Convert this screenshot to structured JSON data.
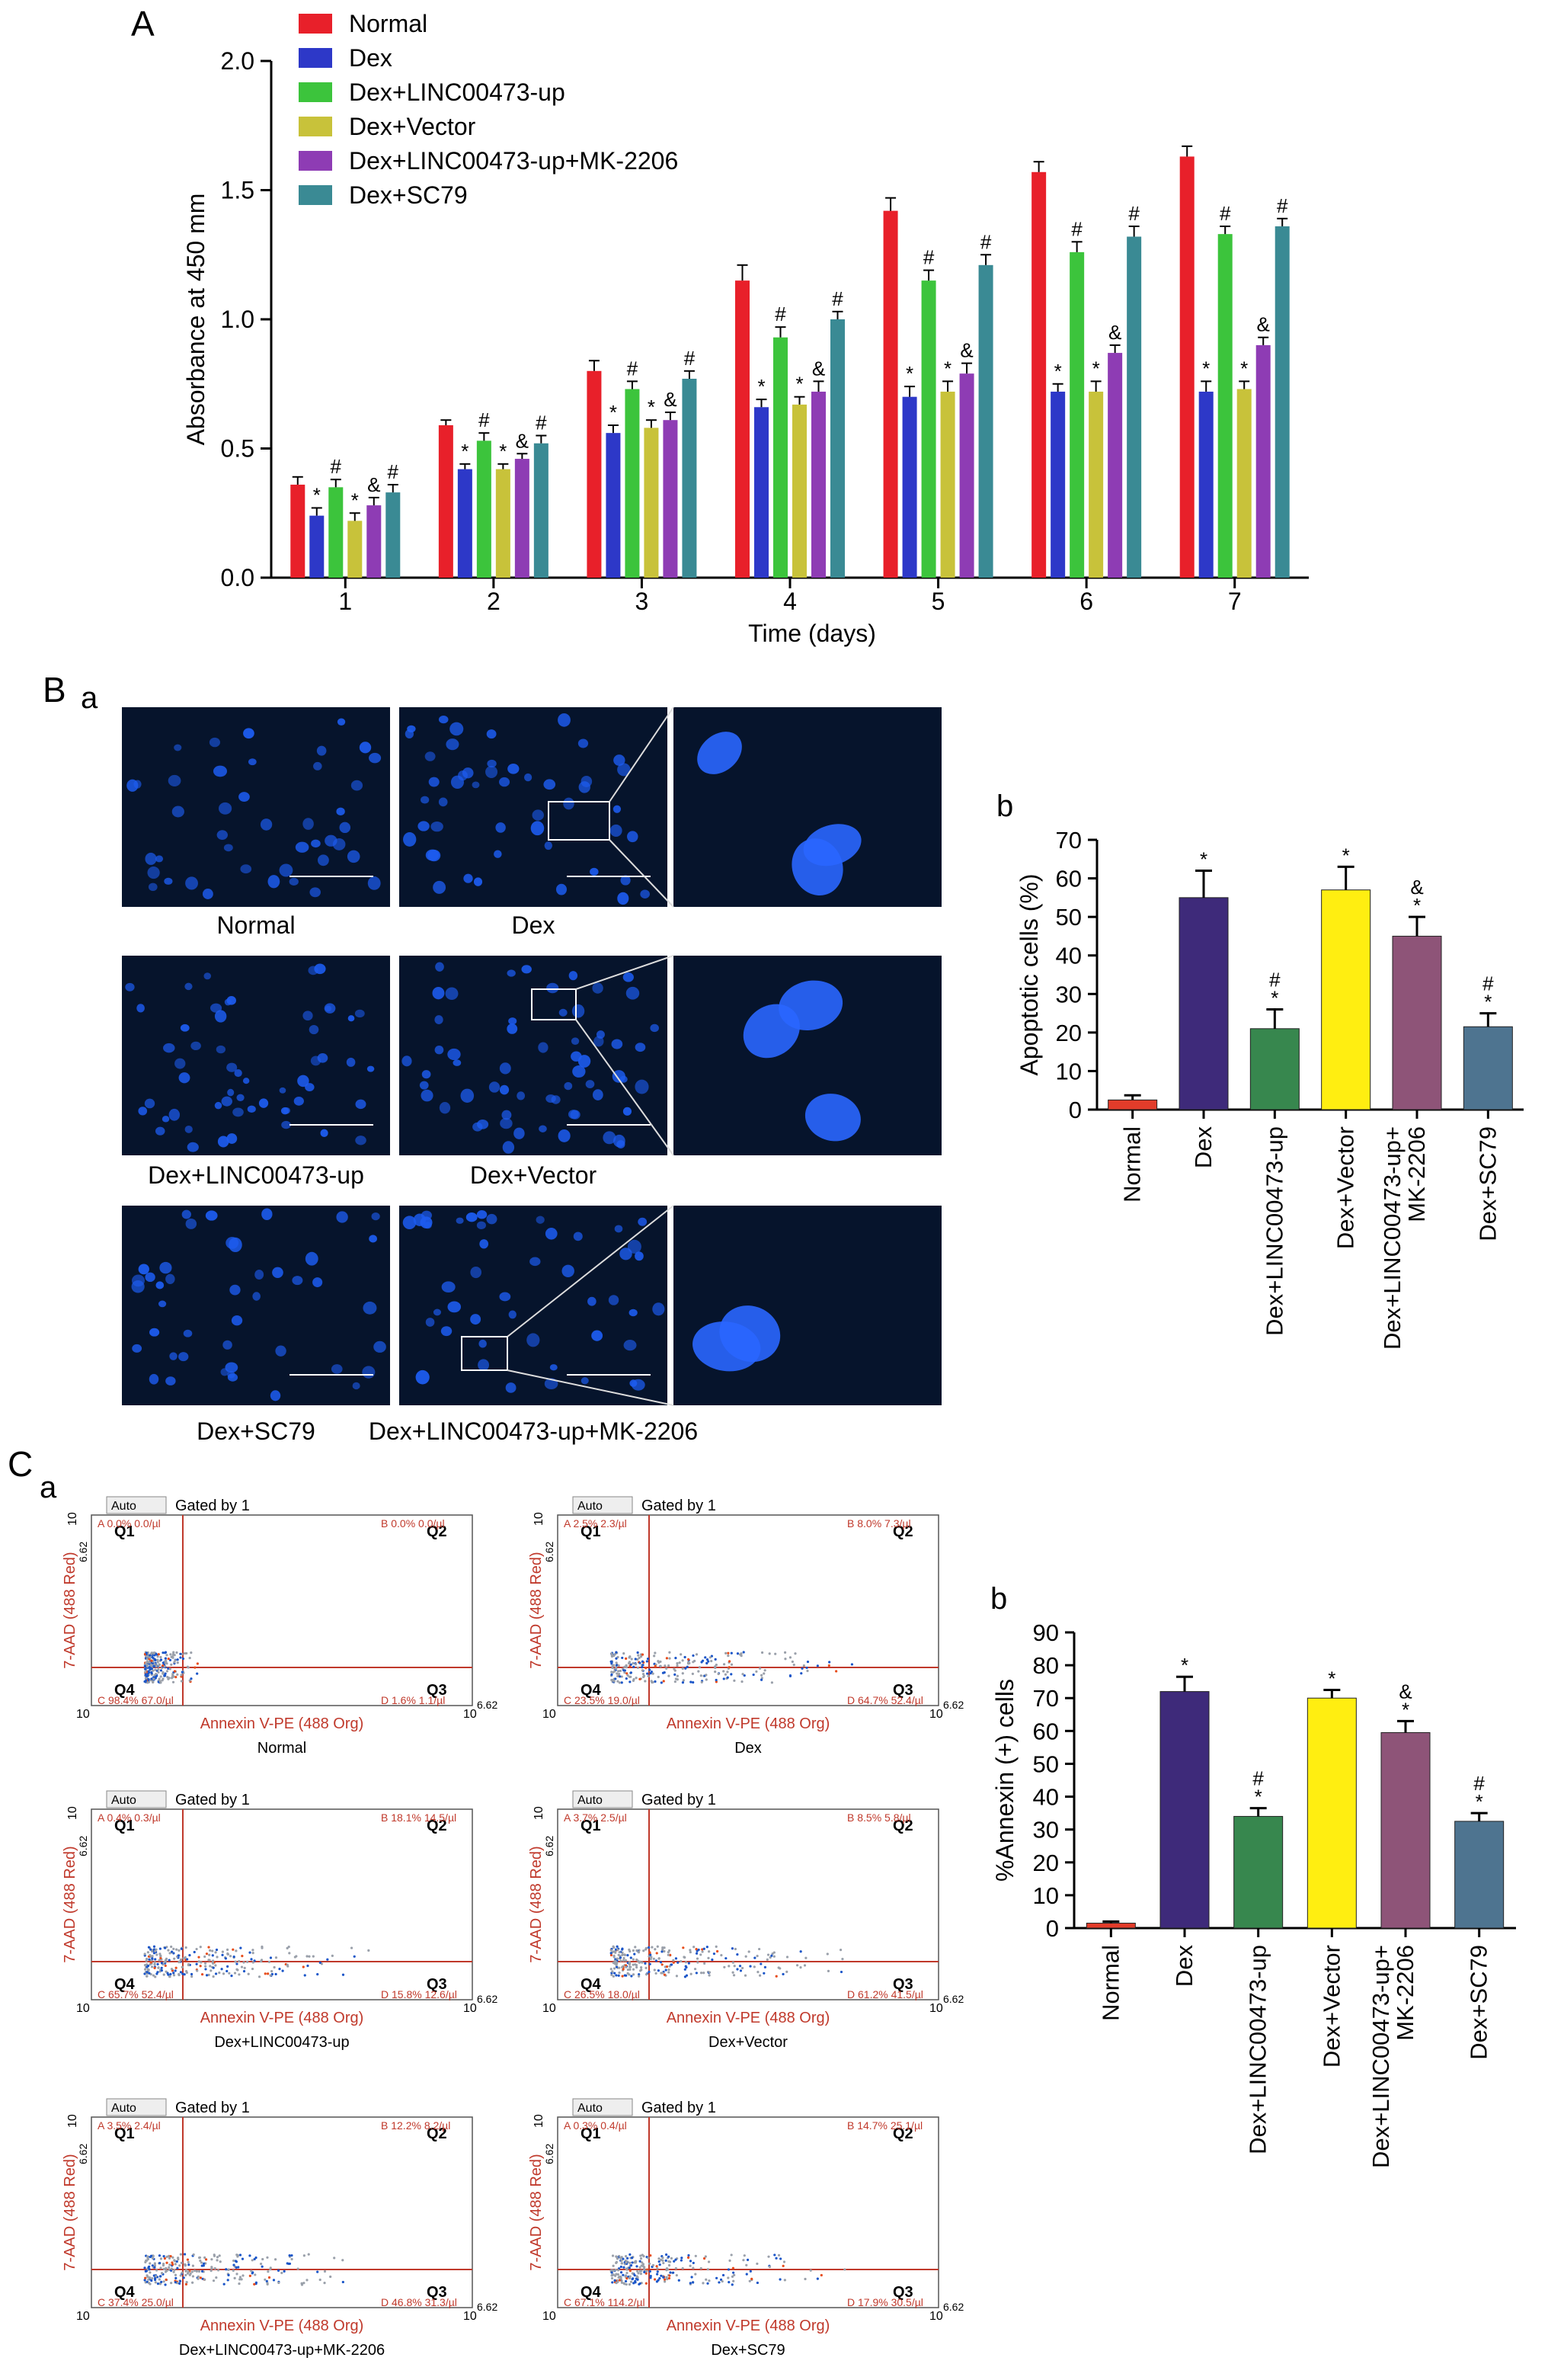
{
  "panels": {
    "A": "A",
    "B": "B",
    "Ba": "a",
    "Bb": "b",
    "C": "C",
    "Ca": "a",
    "Cb": "b"
  },
  "colors": {
    "Normal": "#e8202a",
    "Dex": "#2d38c8",
    "Dex+LINC00473-up": "#3cc43c",
    "Dex+Vector": "#c8c23a",
    "Dex+LINC00473-up+MK-2206": "#8e3cb4",
    "Dex+SC79": "#3a8a94",
    "bar_Normal": "#e23c2a",
    "bar_Dex": "#3e2a7a",
    "bar_LINC": "#37874e",
    "bar_Vector": "#ffee11",
    "bar_MK": "#8e5478",
    "bar_SC79": "#4e7490"
  },
  "chart_data": [
    {
      "type": "bar",
      "xlabel": "Time (days)",
      "ylabel": "Absorbance at 450 mm",
      "ylim": [
        0,
        2.0
      ],
      "yticks": [
        "0.0",
        "0.5",
        "1.0",
        "1.5",
        "2.0"
      ],
      "categories": [
        "1",
        "2",
        "3",
        "4",
        "5",
        "6",
        "7"
      ],
      "legend_position": "top-left",
      "series": [
        {
          "name": "Normal",
          "values": [
            0.36,
            0.59,
            0.8,
            1.15,
            1.42,
            1.57,
            1.63
          ],
          "err": [
            0.03,
            0.02,
            0.04,
            0.06,
            0.05,
            0.04,
            0.04
          ],
          "marks": [
            "",
            "",
            "",
            "",
            "",
            "",
            ""
          ]
        },
        {
          "name": "Dex",
          "values": [
            0.24,
            0.42,
            0.56,
            0.66,
            0.7,
            0.72,
            0.72
          ],
          "err": [
            0.03,
            0.02,
            0.03,
            0.03,
            0.04,
            0.03,
            0.04
          ],
          "marks": [
            "*",
            "*",
            "*",
            "*",
            "*",
            "*",
            "*"
          ]
        },
        {
          "name": "Dex+LINC00473-up",
          "values": [
            0.35,
            0.53,
            0.73,
            0.93,
            1.15,
            1.26,
            1.33
          ],
          "err": [
            0.03,
            0.03,
            0.03,
            0.04,
            0.04,
            0.04,
            0.03
          ],
          "marks": [
            "#",
            "#",
            "#",
            "#",
            "#",
            "#",
            "#"
          ]
        },
        {
          "name": "Dex+Vector",
          "values": [
            0.22,
            0.42,
            0.58,
            0.67,
            0.72,
            0.72,
            0.73
          ],
          "err": [
            0.03,
            0.02,
            0.03,
            0.03,
            0.04,
            0.04,
            0.03
          ],
          "marks": [
            "*",
            "*",
            "*",
            "*",
            "*",
            "*",
            "*"
          ]
        },
        {
          "name": "Dex+LINC00473-up+MK-2206",
          "values": [
            0.28,
            0.46,
            0.61,
            0.72,
            0.79,
            0.87,
            0.9
          ],
          "err": [
            0.03,
            0.02,
            0.03,
            0.04,
            0.04,
            0.03,
            0.03
          ],
          "marks": [
            "&",
            "&",
            "&",
            "&",
            "&",
            "&",
            "&"
          ]
        },
        {
          "name": "Dex+SC79",
          "values": [
            0.33,
            0.52,
            0.77,
            1.0,
            1.21,
            1.32,
            1.36
          ],
          "err": [
            0.03,
            0.03,
            0.03,
            0.03,
            0.04,
            0.04,
            0.03
          ],
          "marks": [
            "#",
            "#",
            "#",
            "#",
            "#",
            "#",
            "#"
          ]
        }
      ]
    },
    {
      "type": "bar",
      "ylabel": "Apoptotic cells (%)",
      "ylim": [
        0,
        70
      ],
      "yticks": [
        "0",
        "10",
        "20",
        "30",
        "40",
        "50",
        "60",
        "70"
      ],
      "categories": [
        "Normal",
        "Dex",
        "Dex+LINC00473-up",
        "Dex+Vector",
        "Dex+LINC00473-up+\nMK-2206",
        "Dex+SC79"
      ],
      "values": [
        2.5,
        55,
        21,
        57,
        45,
        21.5
      ],
      "err": [
        1.2,
        7,
        5,
        6,
        5,
        3.5
      ],
      "marks": [
        "",
        "*",
        "#\n*",
        "*",
        "&\n*",
        "#\n*"
      ]
    },
    {
      "type": "bar",
      "ylabel": "%Annexin (+) cells",
      "ylim": [
        0,
        90
      ],
      "yticks": [
        "0",
        "10",
        "20",
        "30",
        "40",
        "50",
        "60",
        "70",
        "80",
        "90"
      ],
      "categories": [
        "Normal",
        "Dex",
        "Dex+LINC00473-up",
        "Dex+Vector",
        "Dex+LINC00473-up+\nMK-2206",
        "Dex+SC79"
      ],
      "values": [
        1.5,
        72,
        34,
        70,
        59.5,
        32.5
      ],
      "err": [
        0.5,
        4.5,
        2.5,
        2.5,
        3.5,
        2.5
      ],
      "marks": [
        "",
        "*",
        "#\n*",
        "*",
        "&\n*",
        "#\n*"
      ]
    }
  ],
  "fluorescence": {
    "captions": [
      "Normal",
      "Dex",
      "Dex+LINC00473-up",
      "Dex+Vector",
      "Dex+SC79",
      "Dex+LINC00473-up+MK-2206"
    ]
  },
  "flow": {
    "dropdown": "Auto",
    "gated": "Gated by 1",
    "xaxis": "Annexin V-PE (488 Org)",
    "yaxis": "7-AAD (488 Red)",
    "quadrants": [
      "Q1",
      "Q2",
      "Q3",
      "Q4"
    ],
    "axis_min": "10",
    "axis_max_base": "10",
    "axis_max_exp": "6.62",
    "plots": [
      {
        "caption": "Normal",
        "A": "A 0.0% 0.0/µl",
        "B": "B 0.0% 0.0/µl",
        "C": "C 98.4% 67.0/µl",
        "D": "D 1.6% 1.1/µl"
      },
      {
        "caption": "Dex",
        "A": "A 2.5% 2.3/µl",
        "B": "B 8.0% 7.3/µl",
        "C": "C 23.5% 19.0/µl",
        "D": "D 64.7% 52.4/µl"
      },
      {
        "caption": "Dex+LINC00473-up",
        "A": "A 0.4% 0.3/µl",
        "B": "B 18.1% 14.5/µl",
        "C": "C 65.7% 52.4/µl",
        "D": "D 15.8% 12.6/µl"
      },
      {
        "caption": "Dex+Vector",
        "A": "A 3.7% 2.5/µl",
        "B": "B 8.5% 5.8/µl",
        "C": "C 26.5% 18.0/µl",
        "D": "D 61.2% 41.5/µl"
      },
      {
        "caption": "Dex+LINC00473-up+MK-2206",
        "A": "A 3.5% 2.4/µl",
        "B": "B 12.2% 8.2/µl",
        "C": "C 37.4% 25.0/µl",
        "D": "D 46.8% 31.3/µl"
      },
      {
        "caption": "Dex+SC79",
        "A": "A 0.3% 0.4/µl",
        "B": "B 14.7% 25.1/µl",
        "C": "C 67.1% 114.2/µl",
        "D": "D 17.9% 30.5/µl"
      }
    ]
  }
}
